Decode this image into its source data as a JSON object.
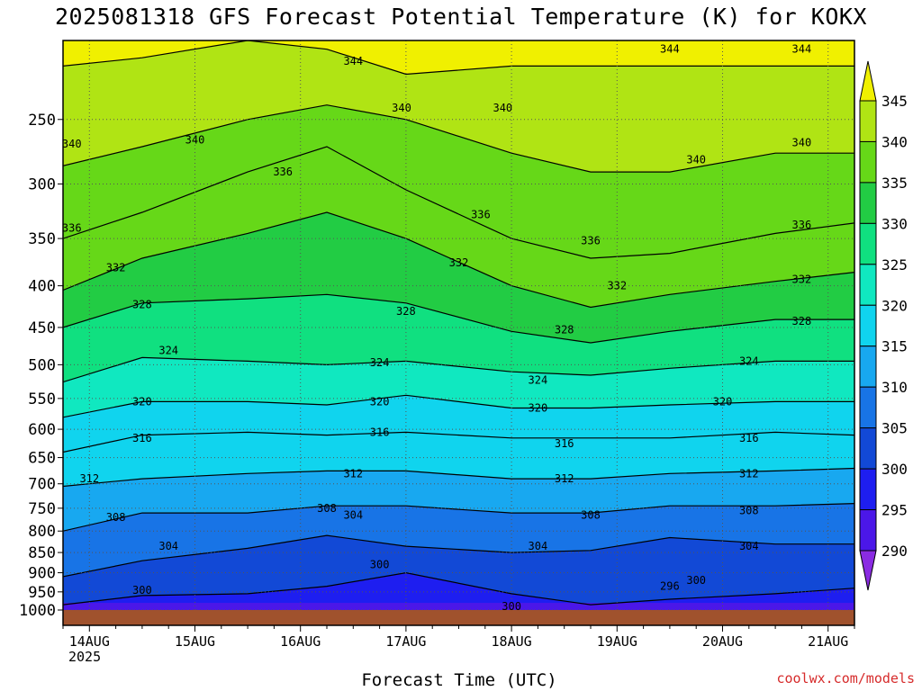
{
  "chart_data": {
    "type": "heatmap",
    "title": "2025081318 GFS Forecast Potential Temperature (K) for KOKX",
    "xlabel": "Forecast Time (UTC)",
    "ylabel": "",
    "credit": "coolwx.com/models",
    "x_ticks": [
      "14AUG",
      "15AUG",
      "16AUG",
      "17AUG",
      "18AUG",
      "19AUG",
      "20AUG",
      "21AUG"
    ],
    "x_year": "2025",
    "x_range": [
      "2025-08-13T18",
      "2025-08-21T06"
    ],
    "y_ticks": [
      250,
      300,
      350,
      400,
      450,
      500,
      550,
      600,
      650,
      700,
      750,
      800,
      850,
      900,
      950,
      1000
    ],
    "y_range": [
      1000,
      200
    ],
    "y_scale": "log-pressure",
    "grid": true,
    "colorbar": {
      "levels": [
        290,
        295,
        300,
        305,
        310,
        315,
        320,
        325,
        330,
        335,
        340,
        345
      ],
      "labels": [
        "290",
        "295",
        "300",
        "305",
        "310",
        "315",
        "320",
        "325",
        "330",
        "335",
        "340",
        "345"
      ],
      "colors": [
        "#8a2be2",
        "#4b17e8",
        "#1e1ef0",
        "#1249d6",
        "#1874e6",
        "#18a8f0",
        "#10d4ee",
        "#10e8c0",
        "#10e080",
        "#22cc44",
        "#66d818",
        "#b0e414",
        "#f0f000"
      ]
    },
    "pressure_of_theta_at_times": {
      "x": [
        "2025-08-13T18",
        "2025-08-14T12",
        "2025-08-15T12",
        "2025-08-16T06",
        "2025-08-17T00",
        "2025-08-18T00",
        "2025-08-18T18",
        "2025-08-19T12",
        "2025-08-20T12",
        "2025-08-21T06"
      ],
      "levels": [
        {
          "theta": 300,
          "p": [
            985,
            960,
            955,
            935,
            900,
            955,
            985,
            970,
            955,
            940
          ]
        },
        {
          "theta": 304,
          "p": [
            910,
            870,
            840,
            810,
            835,
            850,
            845,
            815,
            830,
            830
          ]
        },
        {
          "theta": 308,
          "p": [
            800,
            760,
            760,
            745,
            745,
            760,
            760,
            745,
            745,
            740
          ]
        },
        {
          "theta": 312,
          "p": [
            705,
            690,
            680,
            675,
            675,
            690,
            690,
            680,
            675,
            670
          ]
        },
        {
          "theta": 316,
          "p": [
            640,
            610,
            605,
            610,
            605,
            615,
            615,
            615,
            605,
            610
          ]
        },
        {
          "theta": 320,
          "p": [
            580,
            555,
            555,
            560,
            545,
            565,
            565,
            560,
            555,
            555
          ]
        },
        {
          "theta": 324,
          "p": [
            525,
            490,
            495,
            500,
            495,
            510,
            515,
            505,
            495,
            495
          ]
        },
        {
          "theta": 328,
          "p": [
            450,
            420,
            415,
            410,
            420,
            455,
            470,
            455,
            440,
            440
          ]
        },
        {
          "theta": 332,
          "p": [
            405,
            370,
            345,
            325,
            350,
            400,
            425,
            410,
            395,
            385
          ]
        },
        {
          "theta": 336,
          "p": [
            350,
            325,
            290,
            270,
            305,
            350,
            370,
            365,
            345,
            335
          ]
        },
        {
          "theta": 340,
          "p": [
            285,
            270,
            250,
            240,
            250,
            275,
            290,
            290,
            275,
            275
          ]
        },
        {
          "theta": 344,
          "p": [
            215,
            210,
            200,
            205,
            220,
            215,
            215,
            215,
            215,
            215
          ]
        }
      ]
    },
    "contour_labels": [
      {
        "theta": "340",
        "t": "2025-08-13T20",
        "p": 268
      },
      {
        "theta": "340",
        "t": "2025-08-15T00",
        "p": 265
      },
      {
        "theta": "336",
        "t": "2025-08-13T20",
        "p": 340
      },
      {
        "theta": "336",
        "t": "2025-08-15T20",
        "p": 290
      },
      {
        "theta": "344",
        "t": "2025-08-16T12",
        "p": 212
      },
      {
        "theta": "340",
        "t": "2025-08-16T23",
        "p": 242
      },
      {
        "theta": "340",
        "t": "2025-08-17T22",
        "p": 242
      },
      {
        "theta": "336",
        "t": "2025-08-17T17",
        "p": 327
      },
      {
        "theta": "336",
        "t": "2025-08-18T18",
        "p": 352
      },
      {
        "theta": "344",
        "t": "2025-08-19T12",
        "p": 205
      },
      {
        "theta": "344",
        "t": "2025-08-20T18",
        "p": 205
      },
      {
        "theta": "340",
        "t": "2025-08-19T18",
        "p": 280
      },
      {
        "theta": "340",
        "t": "2025-08-20T18",
        "p": 267
      },
      {
        "theta": "336",
        "t": "2025-08-20T18",
        "p": 337
      },
      {
        "theta": "332",
        "t": "2025-08-14T06",
        "p": 380
      },
      {
        "theta": "332",
        "t": "2025-08-17T12",
        "p": 375
      },
      {
        "theta": "332",
        "t": "2025-08-19T00",
        "p": 400
      },
      {
        "theta": "332",
        "t": "2025-08-20T18",
        "p": 393
      },
      {
        "theta": "328",
        "t": "2025-08-14T12",
        "p": 422
      },
      {
        "theta": "328",
        "t": "2025-08-17T00",
        "p": 430
      },
      {
        "theta": "328",
        "t": "2025-08-18T12",
        "p": 453
      },
      {
        "theta": "328",
        "t": "2025-08-20T18",
        "p": 442
      },
      {
        "theta": "324",
        "t": "2025-08-14T18",
        "p": 480
      },
      {
        "theta": "324",
        "t": "2025-08-16T18",
        "p": 497
      },
      {
        "theta": "324",
        "t": "2025-08-18T06",
        "p": 522
      },
      {
        "theta": "324",
        "t": "2025-08-20T06",
        "p": 495
      },
      {
        "theta": "320",
        "t": "2025-08-14T12",
        "p": 555
      },
      {
        "theta": "320",
        "t": "2025-08-16T18",
        "p": 555
      },
      {
        "theta": "320",
        "t": "2025-08-18T06",
        "p": 565
      },
      {
        "theta": "320",
        "t": "2025-08-20T00",
        "p": 555
      },
      {
        "theta": "316",
        "t": "2025-08-14T12",
        "p": 615
      },
      {
        "theta": "316",
        "t": "2025-08-16T18",
        "p": 605
      },
      {
        "theta": "316",
        "t": "2025-08-18T12",
        "p": 625
      },
      {
        "theta": "316",
        "t": "2025-08-20T06",
        "p": 615
      },
      {
        "theta": "312",
        "t": "2025-08-14T00",
        "p": 690
      },
      {
        "theta": "312",
        "t": "2025-08-16T12",
        "p": 680
      },
      {
        "theta": "312",
        "t": "2025-08-18T12",
        "p": 690
      },
      {
        "theta": "312",
        "t": "2025-08-20T06",
        "p": 680
      },
      {
        "theta": "308",
        "t": "2025-08-14T06",
        "p": 770
      },
      {
        "theta": "308",
        "t": "2025-08-16T06",
        "p": 750
      },
      {
        "theta": "308",
        "t": "2025-08-18T18",
        "p": 765
      },
      {
        "theta": "308",
        "t": "2025-08-20T06",
        "p": 755
      },
      {
        "theta": "304",
        "t": "2025-08-14T18",
        "p": 835
      },
      {
        "theta": "304",
        "t": "2025-08-16T12",
        "p": 765
      },
      {
        "theta": "304",
        "t": "2025-08-18T06",
        "p": 835
      },
      {
        "theta": "304",
        "t": "2025-08-20T06",
        "p": 835
      },
      {
        "theta": "300",
        "t": "2025-08-14T12",
        "p": 945
      },
      {
        "theta": "300",
        "t": "2025-08-16T18",
        "p": 880
      },
      {
        "theta": "300",
        "t": "2025-08-18T00",
        "p": 990
      },
      {
        "theta": "300",
        "t": "2025-08-19T18",
        "p": 920
      },
      {
        "theta": "296",
        "t": "2025-08-19T12",
        "p": 935
      }
    ]
  }
}
